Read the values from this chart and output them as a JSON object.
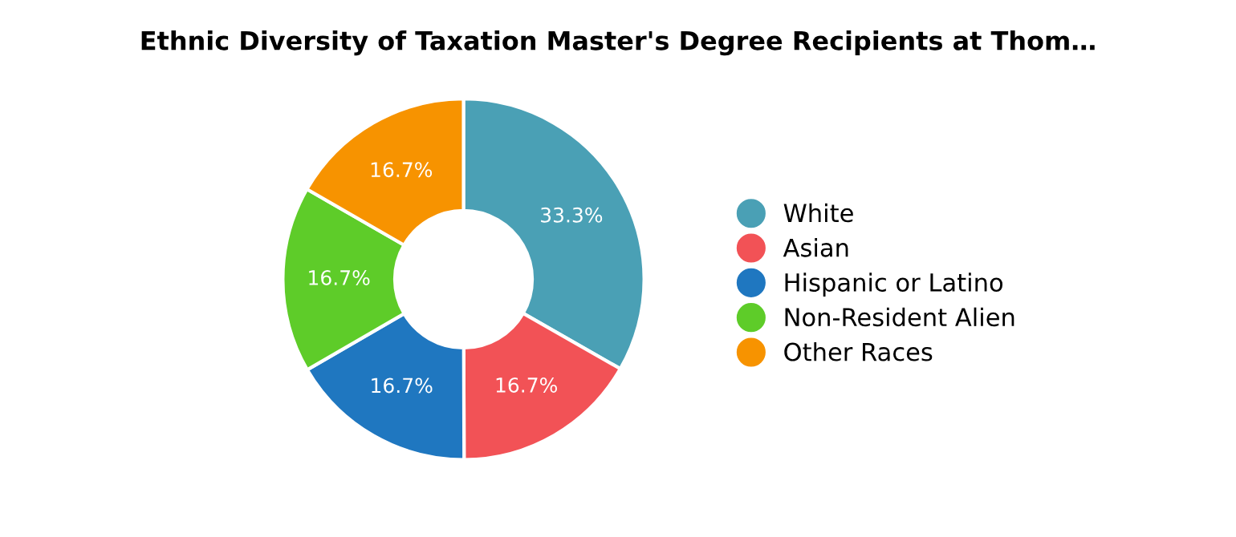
{
  "chart_data": {
    "type": "donut",
    "title": "Ethnic Diversity of Taxation Master's Degree Recipients at Thom…",
    "categories": [
      "White",
      "Asian",
      "Hispanic or Latino",
      "Non-Resident Alien",
      "Other Races"
    ],
    "values": [
      33.3,
      16.7,
      16.7,
      16.7,
      16.7
    ],
    "value_labels": [
      "33.3%",
      "16.7%",
      "16.7%",
      "16.7%",
      "16.7%"
    ],
    "colors": [
      "#4aa0b5",
      "#f25256",
      "#1f77c0",
      "#5ecc29",
      "#f79300"
    ],
    "legend": "right"
  }
}
